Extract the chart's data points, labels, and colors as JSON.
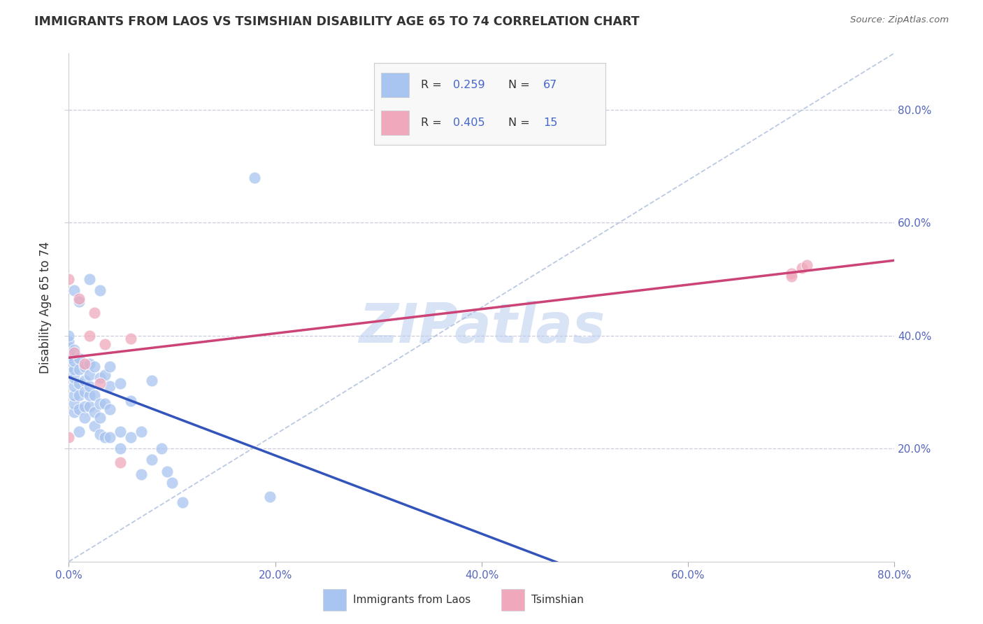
{
  "title": "IMMIGRANTS FROM LAOS VS TSIMSHIAN DISABILITY AGE 65 TO 74 CORRELATION CHART",
  "source": "Source: ZipAtlas.com",
  "ylabel": "Disability Age 65 to 74",
  "xlim": [
    0.0,
    0.8
  ],
  "ylim": [
    0.0,
    0.9
  ],
  "xtick_labels": [
    "0.0%",
    "20.0%",
    "40.0%",
    "60.0%",
    "80.0%"
  ],
  "xtick_values": [
    0.0,
    0.2,
    0.4,
    0.6,
    0.8
  ],
  "ytick_labels_right": [
    "80.0%",
    "60.0%",
    "40.0%",
    "20.0%"
  ],
  "ytick_values_right": [
    0.8,
    0.6,
    0.4,
    0.2
  ],
  "watermark": "ZIPatlas",
  "laos_color": "#a8c4f0",
  "tsimshian_color": "#f0a8bc",
  "laos_R": "0.259",
  "laos_N": "67",
  "tsimshian_R": "0.405",
  "tsimshian_N": "15",
  "laos_line_color": "#3355bb",
  "tsimshian_line_color": "#cc4477",
  "diagonal_color": "#aabbdd",
  "laos_scatter_x": [
    0.0,
    0.0,
    0.0,
    0.0,
    0.0,
    0.0,
    0.0,
    0.0,
    0.0,
    0.005,
    0.005,
    0.005,
    0.005,
    0.005,
    0.005,
    0.005,
    0.005,
    0.005,
    0.01,
    0.01,
    0.01,
    0.01,
    0.01,
    0.01,
    0.01,
    0.015,
    0.015,
    0.015,
    0.015,
    0.015,
    0.02,
    0.02,
    0.02,
    0.02,
    0.02,
    0.02,
    0.025,
    0.025,
    0.025,
    0.025,
    0.03,
    0.03,
    0.03,
    0.03,
    0.03,
    0.035,
    0.035,
    0.035,
    0.04,
    0.04,
    0.04,
    0.04,
    0.05,
    0.05,
    0.05,
    0.06,
    0.06,
    0.07,
    0.07,
    0.08,
    0.08,
    0.09,
    0.095,
    0.1,
    0.11,
    0.18,
    0.195
  ],
  "laos_scatter_y": [
    0.335,
    0.345,
    0.355,
    0.36,
    0.365,
    0.37,
    0.38,
    0.39,
    0.4,
    0.265,
    0.28,
    0.295,
    0.31,
    0.325,
    0.34,
    0.355,
    0.375,
    0.48,
    0.23,
    0.27,
    0.295,
    0.315,
    0.34,
    0.36,
    0.46,
    0.255,
    0.275,
    0.3,
    0.32,
    0.345,
    0.275,
    0.295,
    0.31,
    0.33,
    0.35,
    0.5,
    0.24,
    0.265,
    0.295,
    0.345,
    0.225,
    0.255,
    0.28,
    0.325,
    0.48,
    0.22,
    0.28,
    0.33,
    0.22,
    0.27,
    0.31,
    0.345,
    0.2,
    0.23,
    0.315,
    0.22,
    0.285,
    0.155,
    0.23,
    0.18,
    0.32,
    0.2,
    0.16,
    0.14,
    0.105,
    0.68,
    0.115
  ],
  "tsimshian_scatter_x": [
    0.0,
    0.0,
    0.005,
    0.01,
    0.015,
    0.02,
    0.025,
    0.03,
    0.035,
    0.05,
    0.06,
    0.7,
    0.71,
    0.7,
    0.715
  ],
  "tsimshian_scatter_y": [
    0.22,
    0.5,
    0.37,
    0.465,
    0.35,
    0.4,
    0.44,
    0.315,
    0.385,
    0.175,
    0.395,
    0.51,
    0.52,
    0.505,
    0.525
  ],
  "background_color": "#ffffff",
  "grid_color": "#ccccdd",
  "legend_box_color": "#f8f8f8"
}
